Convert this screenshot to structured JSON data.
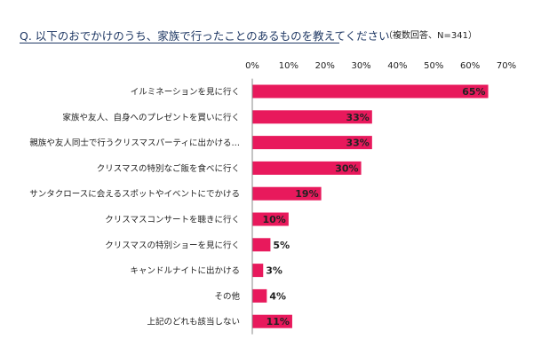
{
  "header": {
    "title": "Q.  以下のおでかけのうち、家族で行ったことのあるものを教えてください",
    "note": "（複数回答、N=341）"
  },
  "colors": {
    "bar": "#e8195c",
    "axis": "#888888",
    "label_inside": "#222222"
  },
  "chart_data": {
    "type": "bar",
    "orientation": "horizontal",
    "title": "",
    "xlabel": "",
    "ylabel": "",
    "xlim": [
      0,
      70
    ],
    "ticks": [
      "0%",
      "10%",
      "20%",
      "30%",
      "40%",
      "50%",
      "60%",
      "70%"
    ],
    "grid": false,
    "legend": "none",
    "categories": [
      "イルミネーションを見に行く",
      "家族や友人、自身へのプレゼントを買いに行く",
      "親族や友人同士で行うクリスマスパーティに出かける…",
      "クリスマスの特別なご飯を食べに行く",
      "サンタクロースに会えるスポットやイベントにでかける",
      "クリスマスコンサートを聴きに行く",
      "クリスマスの特別ショーを見に行く",
      "キャンドルナイトに出かける",
      "その他",
      "上記のどれも該当しない"
    ],
    "values": [
      65,
      33,
      33,
      30,
      19,
      10,
      5,
      3,
      4,
      11
    ],
    "value_labels": [
      "65%",
      "33%",
      "33%",
      "30%",
      "19%",
      "10%",
      "5%",
      "3%",
      "4%",
      "11%"
    ]
  }
}
